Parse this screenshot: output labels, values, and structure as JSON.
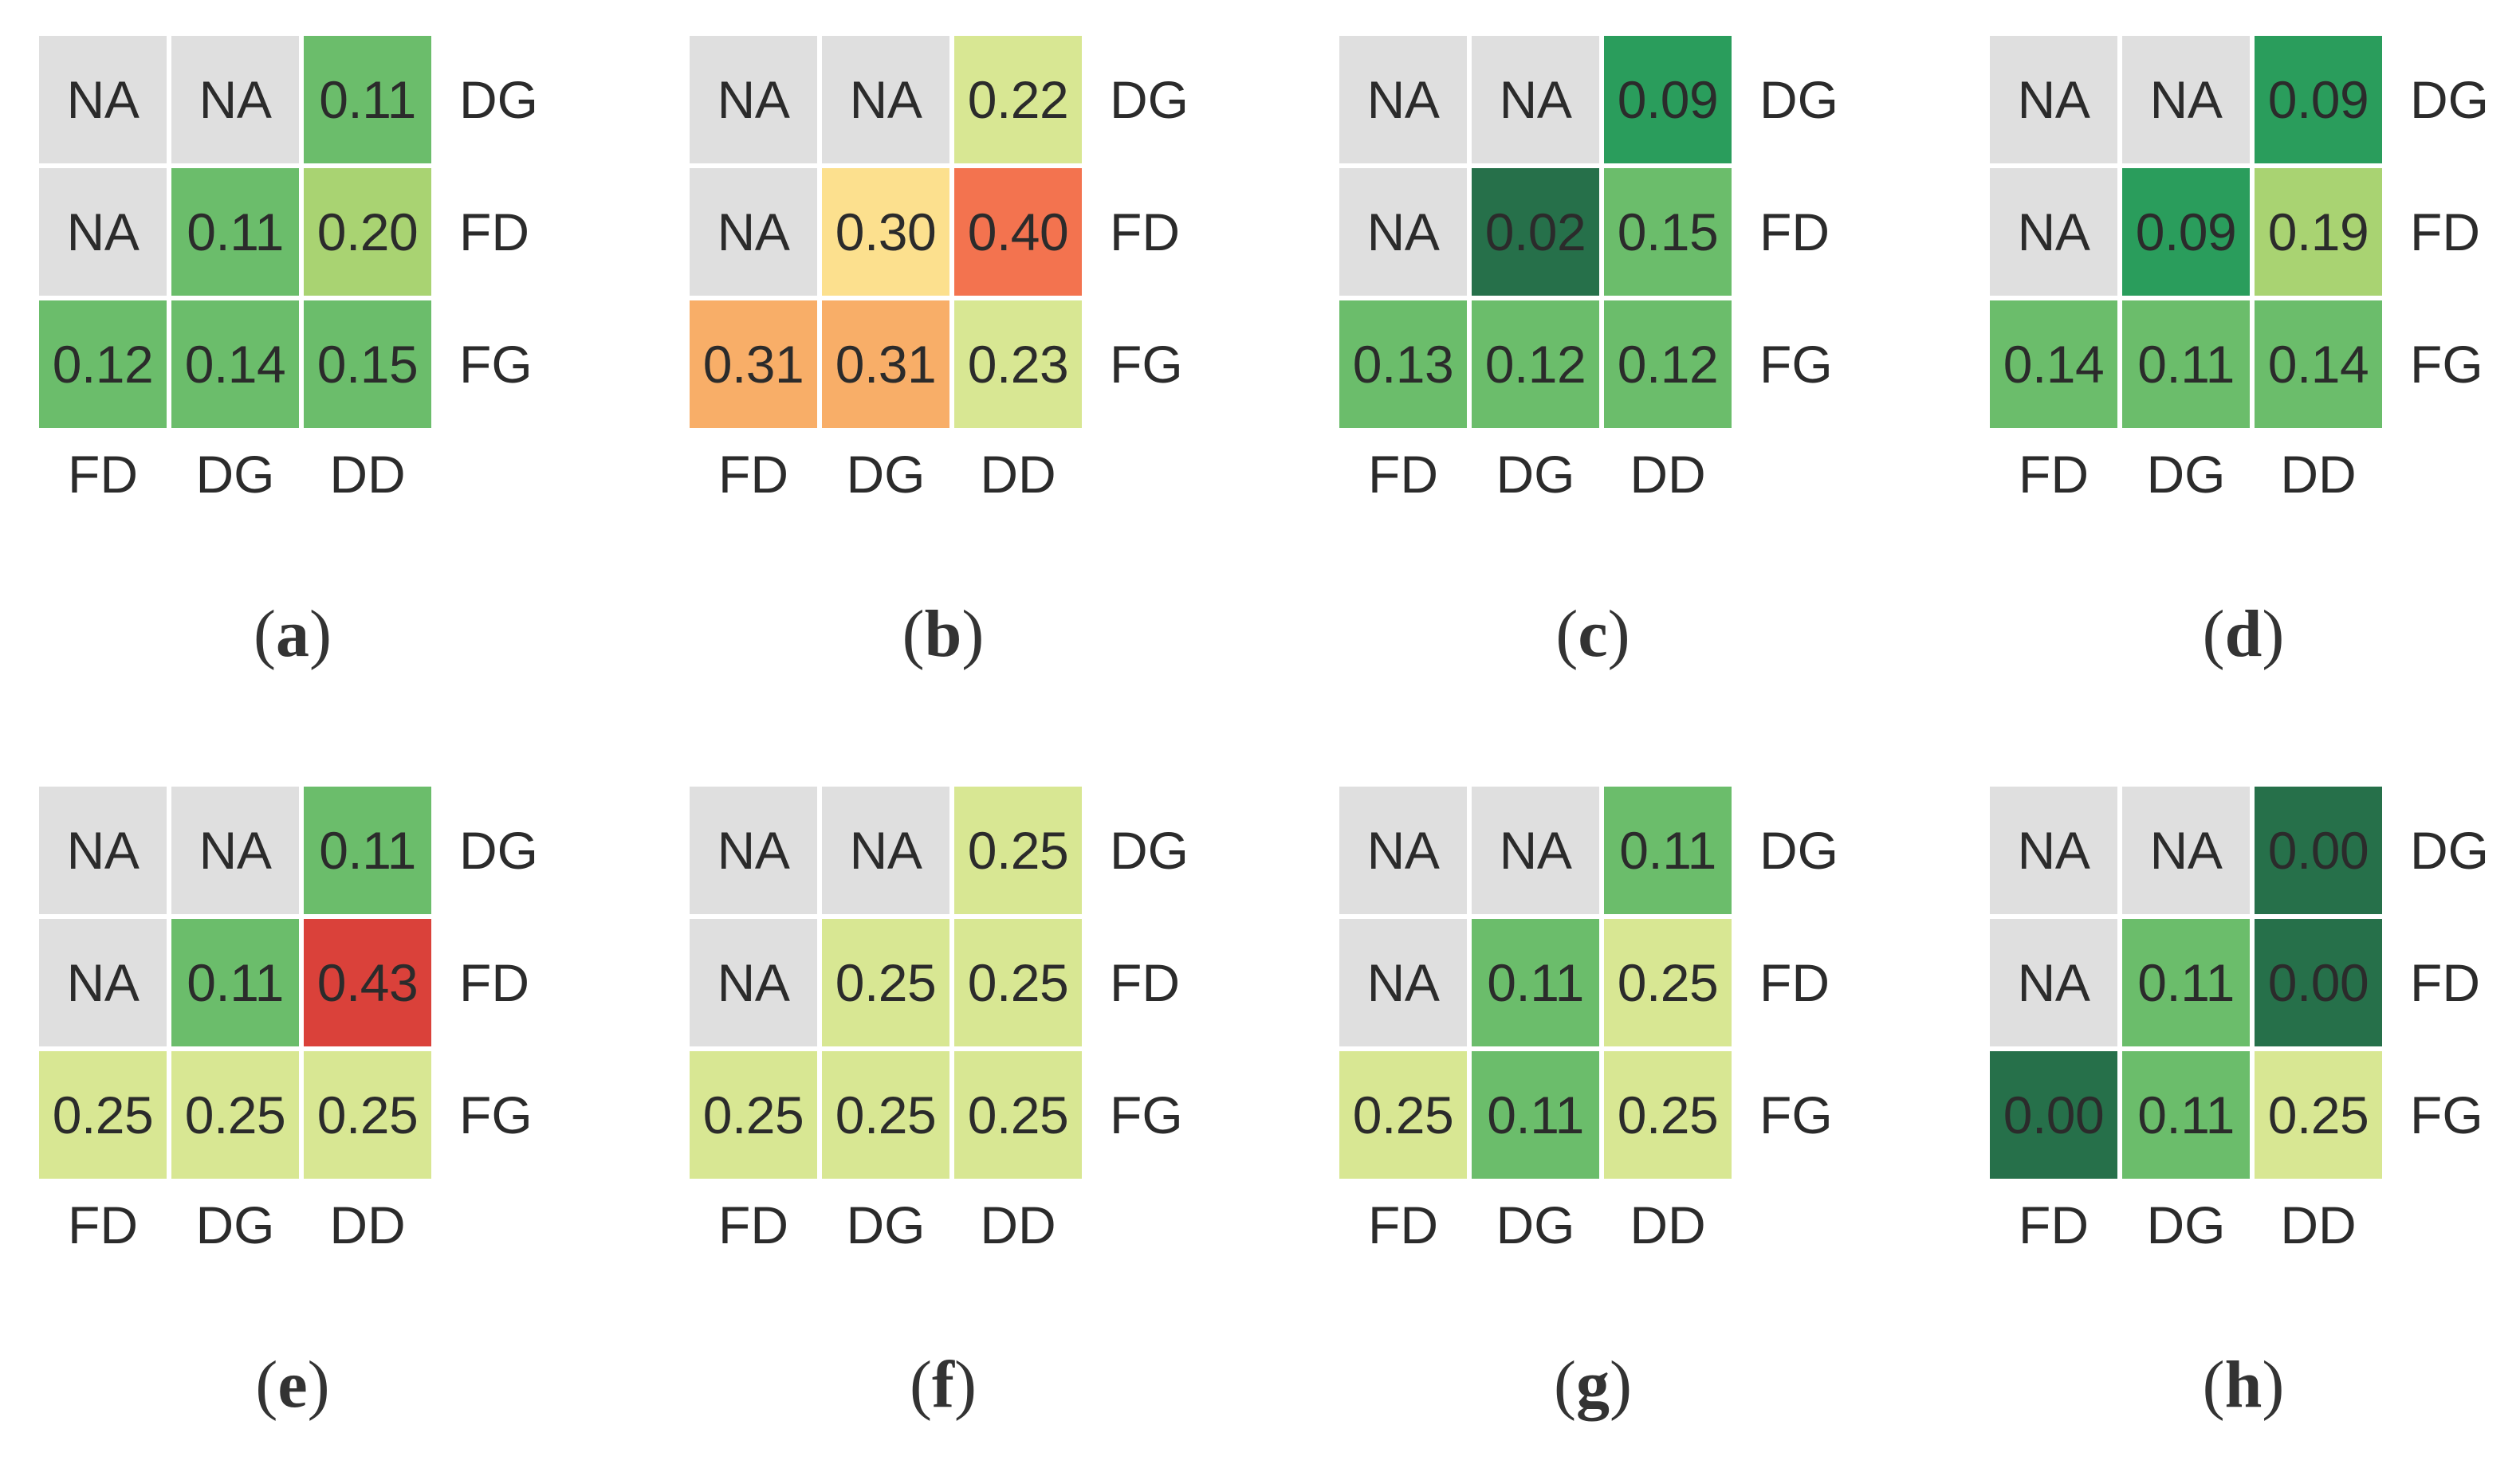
{
  "chart_data": [
    {
      "type": "heatmap",
      "title": "(a)",
      "xlabels": [
        "FD",
        "DG",
        "DD"
      ],
      "ylabels": [
        "DG",
        "FD",
        "FG"
      ],
      "values": [
        [
          "NA",
          "NA",
          0.11
        ],
        [
          "NA",
          0.11,
          0.2
        ],
        [
          0.12,
          0.14,
          0.15
        ]
      ]
    },
    {
      "type": "heatmap",
      "title": "(b)",
      "xlabels": [
        "FD",
        "DG",
        "DD"
      ],
      "ylabels": [
        "DG",
        "FD",
        "FG"
      ],
      "values": [
        [
          "NA",
          "NA",
          0.22
        ],
        [
          "NA",
          0.3,
          0.4
        ],
        [
          0.31,
          0.31,
          0.23
        ]
      ]
    },
    {
      "type": "heatmap",
      "title": "(c)",
      "xlabels": [
        "FD",
        "DG",
        "DD"
      ],
      "ylabels": [
        "DG",
        "FD",
        "FG"
      ],
      "values": [
        [
          "NA",
          "NA",
          0.09
        ],
        [
          "NA",
          0.02,
          0.15
        ],
        [
          0.13,
          0.12,
          0.12
        ]
      ]
    },
    {
      "type": "heatmap",
      "title": "(d)",
      "xlabels": [
        "FD",
        "DG",
        "DD"
      ],
      "ylabels": [
        "DG",
        "FD",
        "FG"
      ],
      "values": [
        [
          "NA",
          "NA",
          0.09
        ],
        [
          "NA",
          0.09,
          0.19
        ],
        [
          0.14,
          0.11,
          0.14
        ]
      ]
    },
    {
      "type": "heatmap",
      "title": "(e)",
      "xlabels": [
        "FD",
        "DG",
        "DD"
      ],
      "ylabels": [
        "DG",
        "FD",
        "FG"
      ],
      "values": [
        [
          "NA",
          "NA",
          0.11
        ],
        [
          "NA",
          0.11,
          0.43
        ],
        [
          0.25,
          0.25,
          0.25
        ]
      ]
    },
    {
      "type": "heatmap",
      "title": "(f)",
      "xlabels": [
        "FD",
        "DG",
        "DD"
      ],
      "ylabels": [
        "DG",
        "FD",
        "FG"
      ],
      "values": [
        [
          "NA",
          "NA",
          0.25
        ],
        [
          "NA",
          0.25,
          0.25
        ],
        [
          0.25,
          0.25,
          0.25
        ]
      ]
    },
    {
      "type": "heatmap",
      "title": "(g)",
      "xlabels": [
        "FD",
        "DG",
        "DD"
      ],
      "ylabels": [
        "DG",
        "FD",
        "FG"
      ],
      "values": [
        [
          "NA",
          "NA",
          0.11
        ],
        [
          "NA",
          0.11,
          0.25
        ],
        [
          0.25,
          0.11,
          0.25
        ]
      ]
    },
    {
      "type": "heatmap",
      "title": "(h)",
      "xlabels": [
        "FD",
        "DG",
        "DD"
      ],
      "ylabels": [
        "DG",
        "FD",
        "FG"
      ],
      "values": [
        [
          "NA",
          "NA",
          0.0
        ],
        [
          "NA",
          0.11,
          0.0
        ],
        [
          0.0,
          0.11,
          0.25
        ]
      ]
    }
  ],
  "panels": [
    {
      "letter": "a",
      "open": "(",
      "close": ")",
      "rows": [
        "DG",
        "FD",
        "FG"
      ],
      "cols": [
        "FD",
        "DG",
        "DD"
      ],
      "cells": [
        [
          {
            "text": "NA",
            "color": "#dfdfdf"
          },
          {
            "text": "NA",
            "color": "#dfdfdf"
          },
          {
            "text": "0.11",
            "color": "#6bbd6b"
          }
        ],
        [
          {
            "text": "NA",
            "color": "#dfdfdf"
          },
          {
            "text": "0.11",
            "color": "#6bbd6b"
          },
          {
            "text": "0.20",
            "color": "#a9d372"
          }
        ],
        [
          {
            "text": "0.12",
            "color": "#6bbd6b"
          },
          {
            "text": "0.14",
            "color": "#6bbd6b"
          },
          {
            "text": "0.15",
            "color": "#6bbd6b"
          }
        ]
      ]
    },
    {
      "letter": "b",
      "open": "(",
      "close": ")",
      "rows": [
        "DG",
        "FD",
        "FG"
      ],
      "cols": [
        "FD",
        "DG",
        "DD"
      ],
      "cells": [
        [
          {
            "text": "NA",
            "color": "#dfdfdf"
          },
          {
            "text": "NA",
            "color": "#dfdfdf"
          },
          {
            "text": "0.22",
            "color": "#d8e793"
          }
        ],
        [
          {
            "text": "NA",
            "color": "#dfdfdf"
          },
          {
            "text": "0.30",
            "color": "#fce08e"
          },
          {
            "text": "0.40",
            "color": "#f3734f"
          }
        ],
        [
          {
            "text": "0.31",
            "color": "#f8ae68"
          },
          {
            "text": "0.31",
            "color": "#f8ae68"
          },
          {
            "text": "0.23",
            "color": "#d8e793"
          }
        ]
      ]
    },
    {
      "letter": "c",
      "open": "(",
      "close": ")",
      "rows": [
        "DG",
        "FD",
        "FG"
      ],
      "cols": [
        "FD",
        "DG",
        "DD"
      ],
      "cells": [
        [
          {
            "text": "NA",
            "color": "#dfdfdf"
          },
          {
            "text": "NA",
            "color": "#dfdfdf"
          },
          {
            "text": "0.09",
            "color": "#2a9d5c"
          }
        ],
        [
          {
            "text": "NA",
            "color": "#dfdfdf"
          },
          {
            "text": "0.02",
            "color": "#26704a"
          },
          {
            "text": "0.15",
            "color": "#6bbd6b"
          }
        ],
        [
          {
            "text": "0.13",
            "color": "#6bbd6b"
          },
          {
            "text": "0.12",
            "color": "#6bbd6b"
          },
          {
            "text": "0.12",
            "color": "#6bbd6b"
          }
        ]
      ]
    },
    {
      "letter": "d",
      "open": "(",
      "close": ")",
      "rows": [
        "DG",
        "FD",
        "FG"
      ],
      "cols": [
        "FD",
        "DG",
        "DD"
      ],
      "cells": [
        [
          {
            "text": "NA",
            "color": "#dfdfdf"
          },
          {
            "text": "NA",
            "color": "#dfdfdf"
          },
          {
            "text": "0.09",
            "color": "#2a9d5c"
          }
        ],
        [
          {
            "text": "NA",
            "color": "#dfdfdf"
          },
          {
            "text": "0.09",
            "color": "#2a9d5c"
          },
          {
            "text": "0.19",
            "color": "#a9d372"
          }
        ],
        [
          {
            "text": "0.14",
            "color": "#6bbd6b"
          },
          {
            "text": "0.11",
            "color": "#6bbd6b"
          },
          {
            "text": "0.14",
            "color": "#6bbd6b"
          }
        ]
      ]
    },
    {
      "letter": "e",
      "open": "(",
      "close": ")",
      "rows": [
        "DG",
        "FD",
        "FG"
      ],
      "cols": [
        "FD",
        "DG",
        "DD"
      ],
      "cells": [
        [
          {
            "text": "NA",
            "color": "#dfdfdf"
          },
          {
            "text": "NA",
            "color": "#dfdfdf"
          },
          {
            "text": "0.11",
            "color": "#6bbd6b"
          }
        ],
        [
          {
            "text": "NA",
            "color": "#dfdfdf"
          },
          {
            "text": "0.11",
            "color": "#6bbd6b"
          },
          {
            "text": "0.43",
            "color": "#da413a"
          }
        ],
        [
          {
            "text": "0.25",
            "color": "#d8e793"
          },
          {
            "text": "0.25",
            "color": "#d8e793"
          },
          {
            "text": "0.25",
            "color": "#d8e793"
          }
        ]
      ]
    },
    {
      "letter": "f",
      "open": "(",
      "close": ")",
      "rows": [
        "DG",
        "FD",
        "FG"
      ],
      "cols": [
        "FD",
        "DG",
        "DD"
      ],
      "cells": [
        [
          {
            "text": "NA",
            "color": "#dfdfdf"
          },
          {
            "text": "NA",
            "color": "#dfdfdf"
          },
          {
            "text": "0.25",
            "color": "#d8e793"
          }
        ],
        [
          {
            "text": "NA",
            "color": "#dfdfdf"
          },
          {
            "text": "0.25",
            "color": "#d8e793"
          },
          {
            "text": "0.25",
            "color": "#d8e793"
          }
        ],
        [
          {
            "text": "0.25",
            "color": "#d8e793"
          },
          {
            "text": "0.25",
            "color": "#d8e793"
          },
          {
            "text": "0.25",
            "color": "#d8e793"
          }
        ]
      ]
    },
    {
      "letter": "g",
      "open": "(",
      "close": ")",
      "rows": [
        "DG",
        "FD",
        "FG"
      ],
      "cols": [
        "FD",
        "DG",
        "DD"
      ],
      "cells": [
        [
          {
            "text": "NA",
            "color": "#dfdfdf"
          },
          {
            "text": "NA",
            "color": "#dfdfdf"
          },
          {
            "text": "0.11",
            "color": "#6bbd6b"
          }
        ],
        [
          {
            "text": "NA",
            "color": "#dfdfdf"
          },
          {
            "text": "0.11",
            "color": "#6bbd6b"
          },
          {
            "text": "0.25",
            "color": "#d8e793"
          }
        ],
        [
          {
            "text": "0.25",
            "color": "#d8e793"
          },
          {
            "text": "0.11",
            "color": "#6bbd6b"
          },
          {
            "text": "0.25",
            "color": "#d8e793"
          }
        ]
      ]
    },
    {
      "letter": "h",
      "open": "(",
      "close": ")",
      "rows": [
        "DG",
        "FD",
        "FG"
      ],
      "cols": [
        "FD",
        "DG",
        "DD"
      ],
      "cells": [
        [
          {
            "text": "NA",
            "color": "#dfdfdf"
          },
          {
            "text": "NA",
            "color": "#dfdfdf"
          },
          {
            "text": "0.00",
            "color": "#26704a"
          }
        ],
        [
          {
            "text": "NA",
            "color": "#dfdfdf"
          },
          {
            "text": "0.11",
            "color": "#6bbd6b"
          },
          {
            "text": "0.00",
            "color": "#26704a"
          }
        ],
        [
          {
            "text": "0.00",
            "color": "#26704a"
          },
          {
            "text": "0.11",
            "color": "#6bbd6b"
          },
          {
            "text": "0.25",
            "color": "#d8e793"
          }
        ]
      ]
    }
  ]
}
